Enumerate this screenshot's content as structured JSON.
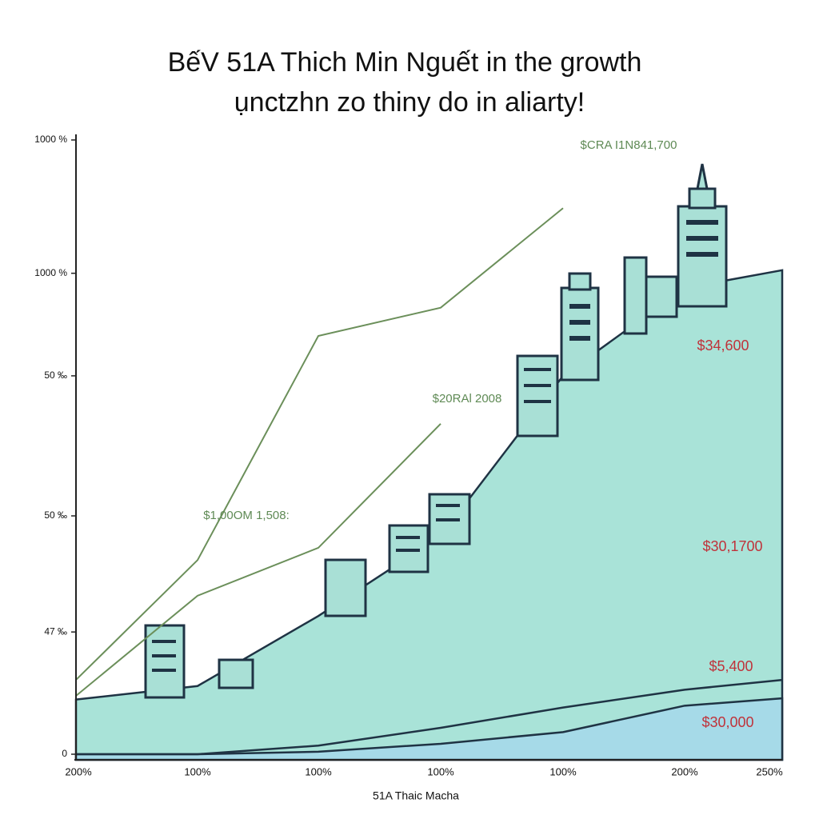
{
  "chart_data": {
    "type": "area",
    "title": "BếV 51A Thich Min Nguết in the growth",
    "subtitle": "ụnctzhn zo thiny do in aliarty!",
    "x_label": "51A Thaic Macha",
    "categories": [
      "200%",
      "100%",
      "100%",
      "100%",
      "100%",
      "200%",
      "250%"
    ],
    "ylim": [
      0,
      100
    ],
    "yticks": [
      {
        "value": 100,
        "label": "1000 %"
      },
      {
        "value": 78.3,
        "label": "1000 %"
      },
      {
        "value": 61.6,
        "label": "50 ‰"
      },
      {
        "value": 38.8,
        "label": "50 ‰"
      },
      {
        "value": 19.9,
        "label": "47 ‰"
      },
      0
    ],
    "series": [
      {
        "style": "area",
        "color": "#a9e3d8",
        "values": [
          8.9,
          11.1,
          22.5,
          35.5,
          61.6,
          75.9,
          78.8
        ]
      },
      {
        "style": "area",
        "color": "#a6dae8",
        "values": [
          0,
          0,
          0.4,
          1.7,
          3.6,
          7.9,
          9.1
        ]
      },
      {
        "style": "line",
        "color": "#1f3344",
        "values": [
          0,
          0,
          1.4,
          4.3,
          7.6,
          10.5,
          12.1
        ]
      },
      {
        "style": "line",
        "color": "#6b8f5a",
        "values": [
          12.1,
          31.6,
          68.1,
          72.7,
          88.9,
          null,
          null
        ]
      },
      {
        "style": "line",
        "color": "#6b8f5a",
        "values": [
          9.5,
          25.8,
          33.6,
          53.8,
          null,
          null,
          null
        ]
      }
    ],
    "annotations": [
      {
        "text": "$CRA I1N841,700",
        "color": "#5f8a55"
      },
      {
        "text": "$20RAl 2008",
        "color": "#5f8a55"
      },
      {
        "text": "$1,00OM 1,508:",
        "color": "#5f8a55"
      },
      {
        "text": "$34,600",
        "color": "#c0323a"
      },
      {
        "text": "$30,1700",
        "color": "#c0323a"
      },
      {
        "text": "$5,400",
        "color": "#c0323a"
      },
      {
        "text": "$30,000",
        "color": "#c0323a"
      }
    ]
  }
}
